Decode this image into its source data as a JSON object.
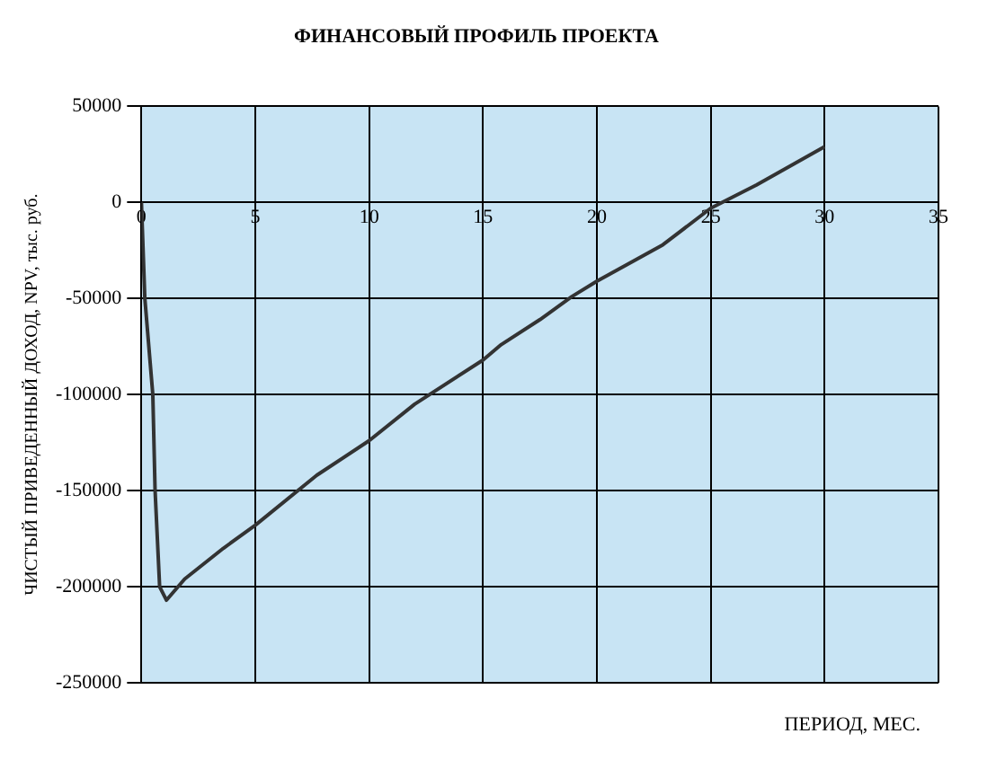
{
  "chart_data": {
    "type": "line",
    "title": "ФИНАНСОВЫЙ ПРОФИЛЬ ПРОЕКТА",
    "xlabel": "ПЕРИОД, МЕС.",
    "ylabel": "ЧИСТЫЙ ПРИВЕДЕННЫЙ ДОХОД, NPV, тыс. руб.",
    "x": [
      0,
      0.15,
      0.5,
      0.6,
      0.8,
      1.1,
      1.9,
      3.6,
      5,
      7.7,
      10,
      12,
      15,
      15.8,
      17.5,
      18.9,
      20,
      22.9,
      25,
      27,
      30
    ],
    "series": [
      {
        "color": "#333333",
        "values": [
          0,
          -50000,
          -100000,
          -150000,
          -200000,
          -207000,
          -196000,
          -180000,
          -168000,
          -142000,
          -124000,
          -105000,
          -82000,
          -74000,
          -61000,
          -49000,
          -41000,
          -22000,
          -3000,
          9000,
          29000
        ]
      }
    ],
    "xlim": [
      0,
      35
    ],
    "xticks": [
      0,
      5,
      10,
      15,
      20,
      25,
      30,
      35
    ],
    "ylim": [
      -250000,
      50000
    ],
    "yticks": [
      -250000,
      -200000,
      -150000,
      -100000,
      -50000,
      0,
      50000
    ],
    "grid": true,
    "legend": false,
    "marker": "none",
    "line_style": "solid"
  }
}
